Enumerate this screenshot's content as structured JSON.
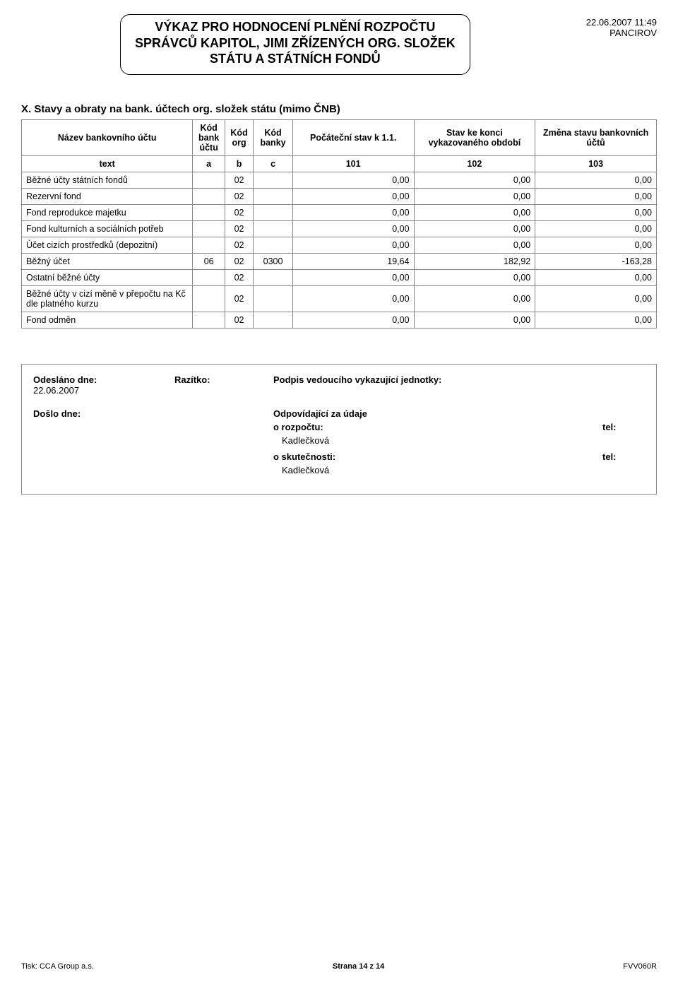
{
  "header": {
    "title_line1": "VÝKAZ PRO HODNOCENÍ PLNĚNÍ ROZPOČTU",
    "title_line2": "SPRÁVCŮ KAPITOL, JIMI ZŘÍZENÝCH ORG. SLOŽEK",
    "title_line3": "STÁTU A STÁTNÍCH FONDŮ",
    "datetime": "22.06.2007 11:49",
    "org": "PANCIROV"
  },
  "section_title": "X. Stavy a obraty na bank. účtech org. složek státu (mimo ČNB)",
  "table": {
    "columns": {
      "name": "Název bankovního účtu",
      "a": "Kód bank účtu",
      "b": "Kód org",
      "c": "Kód banky",
      "c101": "Počáteční stav k 1.1.",
      "c102": "Stav ke konci vykazovaného období",
      "c103": "Změna stavu bankovních účtů"
    },
    "subhead": {
      "text": "text",
      "a": "a",
      "b": "b",
      "c": "c",
      "c101": "101",
      "c102": "102",
      "c103": "103"
    },
    "rows": [
      {
        "name": "Běžné účty státních fondů",
        "a": "",
        "b": "02",
        "c": "",
        "v101": "0,00",
        "v102": "0,00",
        "v103": "0,00"
      },
      {
        "name": "Rezervní fond",
        "a": "",
        "b": "02",
        "c": "",
        "v101": "0,00",
        "v102": "0,00",
        "v103": "0,00"
      },
      {
        "name": "Fond reprodukce majetku",
        "a": "",
        "b": "02",
        "c": "",
        "v101": "0,00",
        "v102": "0,00",
        "v103": "0,00"
      },
      {
        "name": "Fond kulturních a sociálních potřeb",
        "a": "",
        "b": "02",
        "c": "",
        "v101": "0,00",
        "v102": "0,00",
        "v103": "0,00"
      },
      {
        "name": "Účet cizích prostředků (depozitní)",
        "a": "",
        "b": "02",
        "c": "",
        "v101": "0,00",
        "v102": "0,00",
        "v103": "0,00"
      },
      {
        "name": "Běžný účet",
        "a": "06",
        "b": "02",
        "c": "0300",
        "v101": "19,64",
        "v102": "182,92",
        "v103": "-163,28"
      },
      {
        "name": "Ostatní běžné účty",
        "a": "",
        "b": "02",
        "c": "",
        "v101": "0,00",
        "v102": "0,00",
        "v103": "0,00"
      },
      {
        "name": "Běžné účty v cizí měně v přepočtu na Kč dle platného kurzu",
        "a": "",
        "b": "02",
        "c": "",
        "v101": "0,00",
        "v102": "0,00",
        "v103": "0,00"
      },
      {
        "name": "Fond odměn",
        "a": "",
        "b": "02",
        "c": "",
        "v101": "0,00",
        "v102": "0,00",
        "v103": "0,00"
      }
    ]
  },
  "signature": {
    "sent_label": "Odesláno dne:",
    "sent_date": "22.06.2007",
    "stamp_label": "Razítko:",
    "sign_label": "Podpis vedoucího vykazující jednotky:",
    "recv_label": "Došlo dne:",
    "resp_label": "Odpovídající za údaje",
    "budget_label": "o rozpočtu:",
    "budget_name": "Kadlečková",
    "fact_label": "o skutečnosti:",
    "fact_name": "Kadlečková",
    "tel_label": "tel:"
  },
  "footer": {
    "left": "Tisk:  CCA Group a.s.",
    "center": "Strana 14 z 14",
    "right": "FVV060R"
  },
  "style": {
    "border_color": "#888888",
    "text_color": "#000000",
    "background": "#ffffff",
    "title_fontsize": 18,
    "body_fontsize": 13,
    "table_fontsize": 12.5,
    "footer_fontsize": 11
  }
}
